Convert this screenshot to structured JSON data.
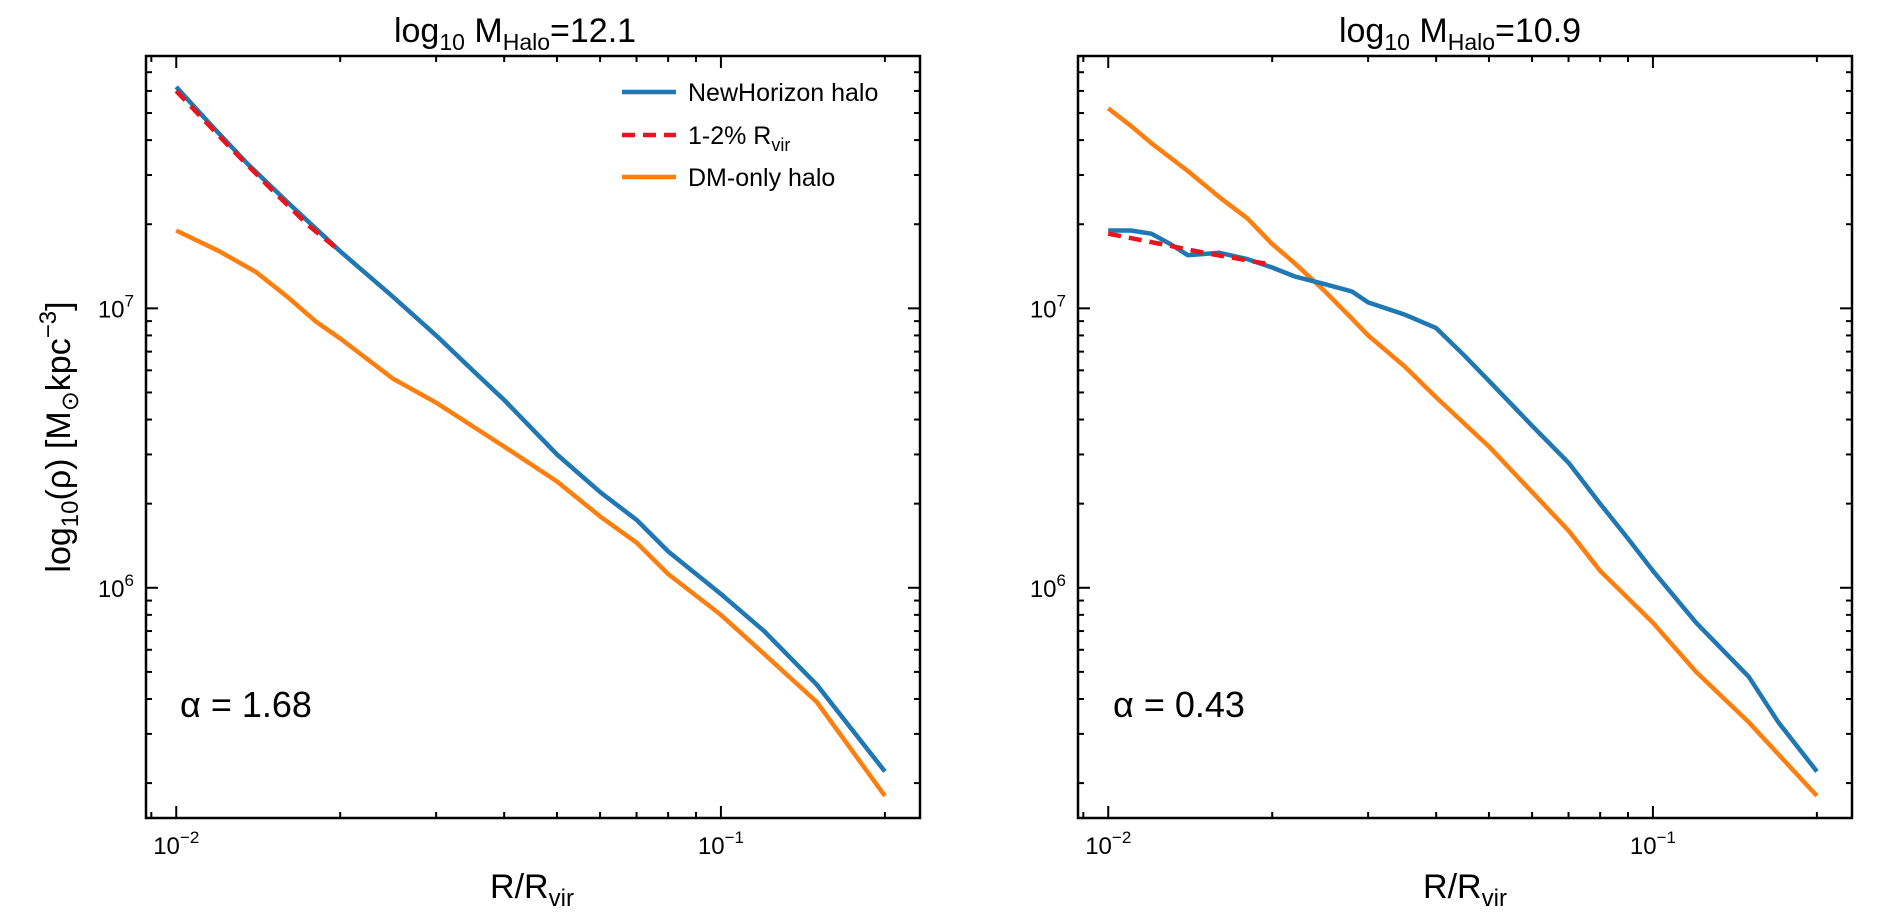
{
  "chart_data": [
    {
      "type": "line",
      "title": "log10 MHalo=12.1",
      "title_parts": {
        "base": "log",
        "base_sub": "10",
        "var": " M",
        "var_sub": "Halo",
        "rest": "=12.1"
      },
      "xlabel": "R/Rvir",
      "xlabel_parts": {
        "base": "R/R",
        "sub": "vir"
      },
      "ylabel": "log10(ρ) [M⊙kpc−3]",
      "ylabel_parts": {
        "p1": "log",
        "p1_sub": "10",
        "p2": "(ρ) [M",
        "p2_sub": "⊙",
        "p3": "kpc",
        "p3_sup": "−3",
        "p4": "]"
      },
      "x_scale": "log",
      "y_scale": "log",
      "xlim": [
        0.0088,
        0.232
      ],
      "ylim": [
        150000,
        80000000
      ],
      "x_ticks": [
        {
          "value": 0.01,
          "base": "10",
          "exp": "−2"
        },
        {
          "value": 0.1,
          "base": "10",
          "exp": "−1"
        }
      ],
      "y_ticks": [
        {
          "value": 1000000,
          "base": "10",
          "exp": "6"
        },
        {
          "value": 10000000,
          "base": "10",
          "exp": "7"
        }
      ],
      "annotation": "α = 1.68",
      "legend": {
        "placement": "top-right",
        "entries": [
          {
            "label": "NewHorizon halo",
            "label_base": "NewHorizon halo",
            "label_sub": "",
            "color": "#1f77b4",
            "dash": false
          },
          {
            "label": "1-2% Rvir",
            "label_base": "1-2% R",
            "label_sub": "vir",
            "color": "#e8161c",
            "dash": true
          },
          {
            "label": "DM-only halo",
            "label_base": "DM-only halo",
            "label_sub": "",
            "color": "#ff7f0e",
            "dash": false
          }
        ]
      },
      "series": [
        {
          "name": "NewHorizon halo",
          "color": "#1f77b4",
          "dash": false,
          "x": [
            0.01,
            0.0115,
            0.0135,
            0.016,
            0.02,
            0.025,
            0.03,
            0.035,
            0.04,
            0.05,
            0.06,
            0.07,
            0.08,
            0.1,
            0.12,
            0.15,
            0.2
          ],
          "y": [
            62000000,
            46000000,
            33000000,
            24000000,
            16000000,
            11000000,
            8000000,
            6000000,
            4700000,
            3000000,
            2200000,
            1750000,
            1350000,
            950000,
            700000,
            450000,
            220000
          ]
        },
        {
          "name": "1-2% Rvir",
          "color": "#e8161c",
          "dash": true,
          "x": [
            0.01,
            0.0125,
            0.015,
            0.0175,
            0.02
          ],
          "y": [
            60000000,
            38000000,
            26500000,
            19800000,
            16000000
          ]
        },
        {
          "name": "DM-only halo",
          "color": "#ff7f0e",
          "dash": false,
          "x": [
            0.01,
            0.012,
            0.014,
            0.016,
            0.018,
            0.02,
            0.025,
            0.03,
            0.04,
            0.05,
            0.06,
            0.07,
            0.08,
            0.1,
            0.12,
            0.15,
            0.2
          ],
          "y": [
            19000000,
            16000000,
            13500000,
            11000000,
            9000000,
            7800000,
            5600000,
            4600000,
            3200000,
            2400000,
            1800000,
            1450000,
            1120000,
            800000,
            580000,
            390000,
            180000
          ]
        }
      ]
    },
    {
      "type": "line",
      "title": "log10 MHalo=10.9",
      "title_parts": {
        "base": "log",
        "base_sub": "10",
        "var": " M",
        "var_sub": "Halo",
        "rest": "=10.9"
      },
      "xlabel": "R/Rvir",
      "xlabel_parts": {
        "base": "R/R",
        "sub": "vir"
      },
      "ylabel": "",
      "x_scale": "log",
      "y_scale": "log",
      "xlim": [
        0.0088,
        0.232
      ],
      "ylim": [
        150000,
        80000000
      ],
      "x_ticks": [
        {
          "value": 0.01,
          "base": "10",
          "exp": "−2"
        },
        {
          "value": 0.1,
          "base": "10",
          "exp": "−1"
        }
      ],
      "y_ticks": [
        {
          "value": 1000000,
          "base": "10",
          "exp": "6"
        },
        {
          "value": 10000000,
          "base": "10",
          "exp": "7"
        }
      ],
      "annotation": "α = 0.43",
      "series": [
        {
          "name": "NewHorizon halo",
          "color": "#1f77b4",
          "dash": false,
          "x": [
            0.01,
            0.011,
            0.012,
            0.013,
            0.014,
            0.016,
            0.018,
            0.02,
            0.022,
            0.025,
            0.028,
            0.03,
            0.035,
            0.04,
            0.045,
            0.05,
            0.06,
            0.07,
            0.08,
            0.09,
            0.1,
            0.12,
            0.15,
            0.17,
            0.2
          ],
          "y": [
            19000000,
            19000000,
            18500000,
            17000000,
            15500000,
            15800000,
            15000000,
            14000000,
            13000000,
            12200000,
            11500000,
            10500000,
            9500000,
            8500000,
            6800000,
            5500000,
            3800000,
            2800000,
            2000000,
            1500000,
            1150000,
            750000,
            480000,
            330000,
            220000
          ]
        },
        {
          "name": "1-2% Rvir",
          "color": "#e8161c",
          "dash": true,
          "x": [
            0.01,
            0.0125,
            0.015,
            0.0175,
            0.02
          ],
          "y": [
            18500000,
            17000000,
            15800000,
            15000000,
            14300000
          ]
        },
        {
          "name": "DM-only halo",
          "color": "#ff7f0e",
          "dash": false,
          "x": [
            0.01,
            0.011,
            0.012,
            0.014,
            0.016,
            0.018,
            0.02,
            0.022,
            0.025,
            0.028,
            0.03,
            0.035,
            0.04,
            0.05,
            0.06,
            0.07,
            0.08,
            0.1,
            0.12,
            0.15,
            0.2
          ],
          "y": [
            52000000,
            45000000,
            39000000,
            31000000,
            25000000,
            21000000,
            17000000,
            14500000,
            11500000,
            9200000,
            8000000,
            6200000,
            4800000,
            3200000,
            2200000,
            1600000,
            1150000,
            750000,
            500000,
            330000,
            180000
          ]
        }
      ]
    }
  ]
}
